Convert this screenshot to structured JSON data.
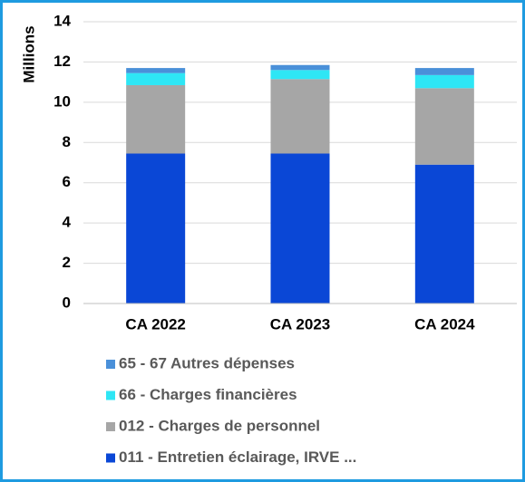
{
  "chart_data": {
    "type": "stacked_bar",
    "y_label": "Millions",
    "categories": [
      "CA 2022",
      "CA 2023",
      "CA 2024"
    ],
    "series": [
      {
        "name": "011 - Entretien éclairage, IRVE ...",
        "color": "#0a47d6",
        "values": [
          7.45,
          7.45,
          6.9
        ]
      },
      {
        "name": "012 - Charges de personnel",
        "color": "#a6a6a6",
        "values": [
          3.4,
          3.7,
          3.8
        ]
      },
      {
        "name": "66 - Charges financières",
        "color": "#2ee6f5",
        "values": [
          0.6,
          0.45,
          0.65
        ]
      },
      {
        "name": "65 - 67 Autres dépenses",
        "color": "#4a90d9",
        "values": [
          0.25,
          0.25,
          0.35
        ]
      }
    ],
    "ylim": [
      0,
      14
    ],
    "yticks": [
      0,
      2,
      4,
      6,
      8,
      10,
      12,
      14
    ],
    "grid": true,
    "legend": "bottom"
  }
}
